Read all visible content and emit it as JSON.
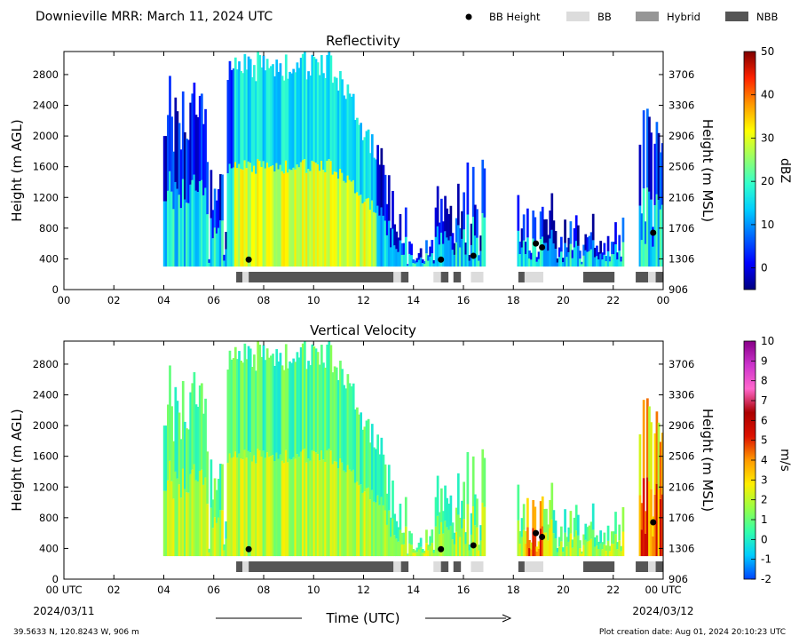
{
  "header": {
    "title": "Downieville MRR:  March 11, 2024 UTC",
    "legend": [
      {
        "label": "BB Height",
        "kind": "dot",
        "color": "#000000"
      },
      {
        "label": "BB",
        "kind": "box",
        "color": "#dcdcdc"
      },
      {
        "label": "Hybrid",
        "kind": "box",
        "color": "#969696"
      },
      {
        "label": "NBB",
        "kind": "box",
        "color": "#555555"
      }
    ]
  },
  "footer": {
    "location": "39.5633 N, 120.8243 W, 906 m",
    "creation": "Plot creation date: Aug 01, 2024 20:10:23 UTC",
    "xlabel": "Time (UTC)",
    "start_date": "2024/03/11",
    "end_date": "2024/03/12"
  },
  "colors": {
    "dbz": [
      "#00007f",
      "#0000ff",
      "#0066ff",
      "#00ccff",
      "#33ffcc",
      "#99ff66",
      "#ffff00",
      "#ff9900",
      "#ff2200",
      "#7f0000"
    ],
    "vv": [
      "#0044ff",
      "#00ccff",
      "#33ffaa",
      "#99ff44",
      "#ffee00",
      "#ff9900",
      "#dd1100",
      "#aa0000",
      "#ff66cc",
      "#cc33cc",
      "#880088"
    ]
  },
  "chart_data": [
    {
      "type": "heatmap",
      "title": "Reflectivity",
      "xlabel": "",
      "ylabel": "Height (m AGL)",
      "y2label": "Height (m MSL)",
      "xlim": [
        0,
        24
      ],
      "ylim": [
        0,
        3100
      ],
      "x_ticks": [
        "00",
        "02",
        "04",
        "06",
        "08",
        "10",
        "12",
        "14",
        "16",
        "18",
        "20",
        "22",
        "00"
      ],
      "y_ticks": [
        0,
        400,
        800,
        1200,
        1600,
        2000,
        2400,
        2800
      ],
      "y2_ticks": [
        906,
        1306,
        1706,
        2106,
        2506,
        2906,
        3306,
        3706
      ],
      "colorbar": {
        "label": "dBZ",
        "min": -5,
        "max": 50,
        "ticks": [
          0,
          10,
          20,
          30,
          40,
          50
        ]
      },
      "bb_height_points": [
        {
          "x": 7.4,
          "y": 390
        },
        {
          "x": 15.1,
          "y": 390
        },
        {
          "x": 16.4,
          "y": 440
        },
        {
          "x": 18.9,
          "y": 600
        },
        {
          "x": 19.15,
          "y": 550
        },
        {
          "x": 23.6,
          "y": 740
        }
      ],
      "bb_type_bars": [
        {
          "start": 6.9,
          "end": 7.15,
          "type": "NBB"
        },
        {
          "start": 7.15,
          "end": 7.4,
          "type": "BB"
        },
        {
          "start": 7.4,
          "end": 13.2,
          "type": "NBB"
        },
        {
          "start": 13.2,
          "end": 13.5,
          "type": "BB"
        },
        {
          "start": 13.5,
          "end": 13.8,
          "type": "NBB"
        },
        {
          "start": 14.8,
          "end": 15.1,
          "type": "BB"
        },
        {
          "start": 15.1,
          "end": 15.4,
          "type": "NBB"
        },
        {
          "start": 15.6,
          "end": 15.9,
          "type": "NBB"
        },
        {
          "start": 16.3,
          "end": 16.8,
          "type": "BB"
        },
        {
          "start": 18.2,
          "end": 18.45,
          "type": "NBB"
        },
        {
          "start": 18.45,
          "end": 19.2,
          "type": "BB"
        },
        {
          "start": 20.8,
          "end": 22.05,
          "type": "NBB"
        },
        {
          "start": 22.9,
          "end": 23.4,
          "type": "NBB"
        },
        {
          "start": 23.4,
          "end": 23.7,
          "type": "BB"
        },
        {
          "start": 23.7,
          "end": 24.0,
          "type": "NBB"
        }
      ]
    },
    {
      "type": "heatmap",
      "title": "Vertical Velocity",
      "xlabel": "Time (UTC)",
      "ylabel": "Height (m AGL)",
      "y2label": "Height (m MSL)",
      "xlim": [
        0,
        24
      ],
      "ylim": [
        0,
        3100
      ],
      "x_ticks": [
        "00 UTC",
        "02",
        "04",
        "06",
        "08",
        "10",
        "12",
        "14",
        "16",
        "18",
        "20",
        "22",
        "00 UTC"
      ],
      "y_ticks": [
        0,
        400,
        800,
        1200,
        1600,
        2000,
        2400,
        2800
      ],
      "y2_ticks": [
        906,
        1306,
        1706,
        2106,
        2506,
        2906,
        3306,
        3706
      ],
      "colorbar": {
        "label": "m/s",
        "min": -2,
        "max": 10,
        "ticks": [
          -2,
          -1,
          0,
          1,
          2,
          3,
          4,
          5,
          6,
          7,
          8,
          9,
          10
        ]
      },
      "bb_height_points": [
        {
          "x": 7.4,
          "y": 390
        },
        {
          "x": 15.1,
          "y": 390
        },
        {
          "x": 16.4,
          "y": 440
        },
        {
          "x": 18.9,
          "y": 600
        },
        {
          "x": 19.15,
          "y": 550
        },
        {
          "x": 23.6,
          "y": 740
        }
      ],
      "bb_type_bars": [
        {
          "start": 6.9,
          "end": 7.15,
          "type": "NBB"
        },
        {
          "start": 7.15,
          "end": 7.4,
          "type": "BB"
        },
        {
          "start": 7.4,
          "end": 13.2,
          "type": "NBB"
        },
        {
          "start": 13.2,
          "end": 13.5,
          "type": "BB"
        },
        {
          "start": 13.5,
          "end": 13.8,
          "type": "NBB"
        },
        {
          "start": 14.8,
          "end": 15.1,
          "type": "BB"
        },
        {
          "start": 15.1,
          "end": 15.4,
          "type": "NBB"
        },
        {
          "start": 15.6,
          "end": 15.9,
          "type": "NBB"
        },
        {
          "start": 16.3,
          "end": 16.8,
          "type": "BB"
        },
        {
          "start": 18.2,
          "end": 18.45,
          "type": "NBB"
        },
        {
          "start": 18.45,
          "end": 19.2,
          "type": "BB"
        },
        {
          "start": 20.8,
          "end": 22.05,
          "type": "NBB"
        },
        {
          "start": 22.9,
          "end": 23.4,
          "type": "NBB"
        },
        {
          "start": 23.4,
          "end": 23.7,
          "type": "BB"
        },
        {
          "start": 23.7,
          "end": 24.0,
          "type": "NBB"
        }
      ]
    }
  ]
}
